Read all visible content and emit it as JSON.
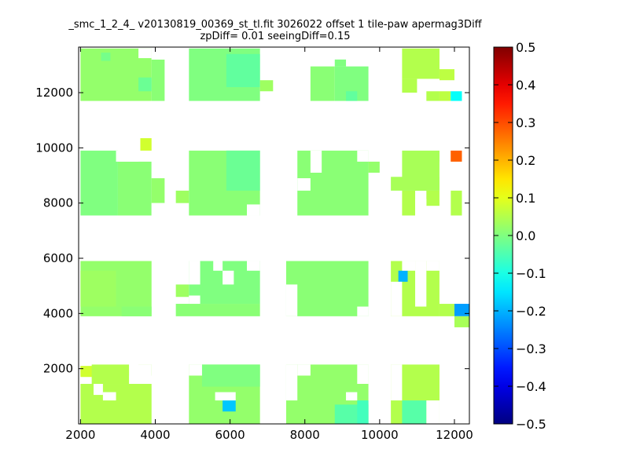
{
  "chart_data": {
    "type": "heatmap",
    "title_line1": "_smc_1_2_4_ v20130819_00369_st_tl.fit 3026022 offset 1 tile-paw apermag3Diff",
    "title_line2": "zpDiff= 0.01 seeingDiff=0.15",
    "xlim": [
      1950,
      12400
    ],
    "ylim": [
      0,
      13650
    ],
    "x_ticks": [
      2000,
      4000,
      6000,
      8000,
      10000,
      12000
    ],
    "y_ticks": [
      2000,
      4000,
      6000,
      8000,
      10000,
      12000
    ],
    "colorbar": {
      "colormap": "jet",
      "range": [
        -0.5,
        0.5
      ],
      "ticks": [
        "0.5",
        "0.4",
        "0.3",
        "0.2",
        "0.1",
        "0.0",
        "−0.1",
        "−0.2",
        "−0.3",
        "−0.4",
        "−0.5"
      ]
    },
    "cell_size": [
      320,
      440
    ],
    "cells": [
      {
        "x0": 2000,
        "x1": 3900,
        "y0": 11700,
        "y1": 13600,
        "value": 0.02
      },
      {
        "x0": 3900,
        "x1": 4250,
        "y0": 11700,
        "y1": 13200,
        "value": 0.01
      },
      {
        "x0": 2550,
        "x1": 2800,
        "y0": 13150,
        "y1": 13450,
        "value": -0.01
      },
      {
        "x0": 3550,
        "x1": 3900,
        "y0": 12050,
        "y1": 12550,
        "value": -0.02
      },
      {
        "x0": 4900,
        "x1": 6800,
        "y0": 11700,
        "y1": 13600,
        "value": 0.0
      },
      {
        "x0": 5900,
        "x1": 6800,
        "y0": 12200,
        "y1": 13400,
        "value": -0.03
      },
      {
        "x0": 6800,
        "x1": 7150,
        "y0": 12050,
        "y1": 12450,
        "value": 0.03
      },
      {
        "x0": 8150,
        "x1": 8800,
        "y0": 11700,
        "y1": 12950,
        "value": 0.01
      },
      {
        "x0": 8800,
        "x1": 9700,
        "y0": 11700,
        "y1": 12950,
        "value": 0.0
      },
      {
        "x0": 9100,
        "x1": 9400,
        "y0": 11700,
        "y1": 12050,
        "value": -0.03
      },
      {
        "x0": 8800,
        "x1": 9100,
        "y0": 12950,
        "y1": 13200,
        "value": 0.0
      },
      {
        "x0": 10600,
        "x1": 11600,
        "y0": 12500,
        "y1": 13600,
        "value": 0.05
      },
      {
        "x0": 10600,
        "x1": 11000,
        "y0": 12000,
        "y1": 12500,
        "value": 0.05
      },
      {
        "x0": 11600,
        "x1": 12000,
        "y0": 12450,
        "y1": 12850,
        "value": 0.06
      },
      {
        "x0": 11250,
        "x1": 11600,
        "y0": 11700,
        "y1": 12050,
        "value": 0.05
      },
      {
        "x0": 11600,
        "x1": 11900,
        "y0": 11700,
        "y1": 12050,
        "value": 0.06
      },
      {
        "x0": 11900,
        "x1": 12200,
        "y0": 11700,
        "y1": 12050,
        "value": -0.12
      },
      {
        "x0": 3600,
        "x1": 3900,
        "y0": 9900,
        "y1": 10350,
        "value": 0.08
      },
      {
        "x0": 2000,
        "x1": 3000,
        "y0": 7550,
        "y1": 9900,
        "value": 0.0
      },
      {
        "x0": 3000,
        "x1": 3900,
        "y0": 7550,
        "y1": 9500,
        "value": 0.01
      },
      {
        "x0": 3900,
        "x1": 4250,
        "y0": 8000,
        "y1": 8900,
        "value": 0.02
      },
      {
        "x0": 4550,
        "x1": 4900,
        "y0": 8000,
        "y1": 8450,
        "value": 0.03
      },
      {
        "x0": 4900,
        "x1": 6800,
        "y0": 7550,
        "y1": 9900,
        "value": 0.01
      },
      {
        "x0": 5900,
        "x1": 6800,
        "y0": 8450,
        "y1": 9900,
        "value": -0.02
      },
      {
        "x0": 7800,
        "x1": 9700,
        "y0": 7550,
        "y1": 9900,
        "value": 0.01
      },
      {
        "x0": 9700,
        "x1": 10000,
        "y0": 9100,
        "y1": 9500,
        "value": 0.02
      },
      {
        "x0": 10600,
        "x1": 11600,
        "y0": 8450,
        "y1": 9900,
        "value": 0.04
      },
      {
        "x0": 10300,
        "x1": 11600,
        "y0": 8450,
        "y1": 8950,
        "value": 0.04
      },
      {
        "x0": 10600,
        "x1": 10950,
        "y0": 7550,
        "y1": 8450,
        "value": 0.05
      },
      {
        "x0": 11250,
        "x1": 11600,
        "y0": 7900,
        "y1": 8450,
        "value": 0.05
      },
      {
        "x0": 11900,
        "x1": 12200,
        "y0": 7550,
        "y1": 8450,
        "value": 0.05
      },
      {
        "x0": 11900,
        "x1": 12200,
        "y0": 9500,
        "y1": 9900,
        "value": 0.28
      },
      {
        "x0": 2000,
        "x1": 3900,
        "y0": 3900,
        "y1": 5900,
        "value": 0.02
      },
      {
        "x0": 2000,
        "x1": 2950,
        "y0": 4250,
        "y1": 5550,
        "value": 0.03
      },
      {
        "x0": 3100,
        "x1": 3900,
        "y0": 3900,
        "y1": 4250,
        "value": 0.01
      },
      {
        "x0": 4550,
        "x1": 4900,
        "y0": 4600,
        "y1": 5050,
        "value": 0.03
      },
      {
        "x0": 4550,
        "x1": 6800,
        "y0": 3900,
        "y1": 4350,
        "value": 0.01
      },
      {
        "x0": 4900,
        "x1": 6800,
        "y0": 4350,
        "y1": 5900,
        "value": 0.0
      },
      {
        "x0": 7500,
        "x1": 9700,
        "y0": 3900,
        "y1": 5900,
        "value": 0.01
      },
      {
        "x0": 10300,
        "x1": 11600,
        "y0": 3900,
        "y1": 5900,
        "value": 0.05
      },
      {
        "x0": 10500,
        "x1": 10750,
        "y0": 5150,
        "y1": 5550,
        "value": -0.2
      },
      {
        "x0": 11600,
        "x1": 12000,
        "y0": 3900,
        "y1": 4350,
        "value": 0.05
      },
      {
        "x0": 12000,
        "x1": 12400,
        "y0": 3900,
        "y1": 4350,
        "value": -0.22
      },
      {
        "x0": 12000,
        "x1": 12400,
        "y0": 3500,
        "y1": 3900,
        "value": 0.04
      },
      {
        "x0": 2000,
        "x1": 3300,
        "y0": 1750,
        "y1": 1950,
        "value": 0.04
      },
      {
        "x0": 2000,
        "x1": 2350,
        "y0": 1700,
        "y1": 2100,
        "value": 0.08
      },
      {
        "x0": 2000,
        "x1": 3900,
        "y0": 0,
        "y1": 1450,
        "value": 0.05
      },
      {
        "x0": 2300,
        "x1": 3300,
        "y0": 1450,
        "y1": 2150,
        "value": 0.05
      },
      {
        "x0": 3550,
        "x1": 3900,
        "y0": 1750,
        "y1": 2150,
        "value": 0.04
      },
      {
        "x0": 4900,
        "x1": 6800,
        "y0": 0,
        "y1": 2150,
        "value": 0.02
      },
      {
        "x0": 5250,
        "x1": 6800,
        "y0": 1350,
        "y1": 2150,
        "value": 0.0
      },
      {
        "x0": 5800,
        "x1": 6150,
        "y0": 450,
        "y1": 850,
        "value": -0.18
      },
      {
        "x0": 7500,
        "x1": 9700,
        "y0": 0,
        "y1": 2150,
        "value": 0.02
      },
      {
        "x0": 8800,
        "x1": 9700,
        "y0": 0,
        "y1": 700,
        "value": -0.04
      },
      {
        "x0": 9400,
        "x1": 9700,
        "y0": 0,
        "y1": 850,
        "value": -0.06
      },
      {
        "x0": 10300,
        "x1": 11600,
        "y0": 0,
        "y1": 2150,
        "value": 0.05
      },
      {
        "x0": 10600,
        "x1": 11250,
        "y0": 0,
        "y1": 850,
        "value": -0.04
      }
    ],
    "holes": [
      {
        "x0": 3900,
        "x1": 4250,
        "y0": 13200,
        "y1": 13600
      },
      {
        "x0": 6800,
        "x1": 6800,
        "y0": 13600,
        "y1": 13600
      },
      {
        "x0": 2950,
        "x1": 3550,
        "y0": 9500,
        "y1": 9900
      },
      {
        "x0": 3900,
        "x1": 4250,
        "y0": 8900,
        "y1": 9900
      },
      {
        "x0": 3900,
        "x1": 4250,
        "y0": 7550,
        "y1": 8000
      },
      {
        "x0": 6450,
        "x1": 6800,
        "y0": 7550,
        "y1": 7950
      },
      {
        "x0": 8150,
        "x1": 8450,
        "y0": 9100,
        "y1": 9900
      },
      {
        "x0": 9400,
        "x1": 9700,
        "y0": 9500,
        "y1": 9900
      },
      {
        "x0": 7800,
        "x1": 8150,
        "y0": 8450,
        "y1": 8900
      },
      {
        "x0": 10950,
        "x1": 11250,
        "y0": 7550,
        "y1": 8150
      },
      {
        "x0": 11600,
        "x1": 11900,
        "y0": 7550,
        "y1": 9500
      },
      {
        "x0": 4900,
        "x1": 5200,
        "y0": 5050,
        "y1": 5900
      },
      {
        "x0": 5550,
        "x1": 5800,
        "y0": 5550,
        "y1": 5900
      },
      {
        "x0": 5800,
        "x1": 6100,
        "y0": 5050,
        "y1": 5550
      },
      {
        "x0": 6450,
        "x1": 6800,
        "y0": 5550,
        "y1": 5900
      },
      {
        "x0": 4900,
        "x1": 5200,
        "y0": 4350,
        "y1": 4650
      },
      {
        "x0": 9400,
        "x1": 9700,
        "y0": 3900,
        "y1": 4250
      },
      {
        "x0": 7500,
        "x1": 7800,
        "y0": 3900,
        "y1": 5050
      },
      {
        "x0": 10300,
        "x1": 10600,
        "y0": 3900,
        "y1": 5150
      },
      {
        "x0": 10600,
        "x1": 10950,
        "y0": 5550,
        "y1": 5900
      },
      {
        "x0": 10950,
        "x1": 11250,
        "y0": 4250,
        "y1": 5900
      },
      {
        "x0": 11600,
        "x1": 12000,
        "y0": 4350,
        "y1": 5900
      },
      {
        "x0": 11250,
        "x1": 11600,
        "y0": 5550,
        "y1": 5900
      },
      {
        "x0": 2350,
        "x1": 2600,
        "y0": 1050,
        "y1": 1450
      },
      {
        "x0": 2600,
        "x1": 2950,
        "y0": 850,
        "y1": 1150
      },
      {
        "x0": 3300,
        "x1": 3900,
        "y0": 1450,
        "y1": 2150
      },
      {
        "x0": 4900,
        "x1": 5250,
        "y0": 1750,
        "y1": 2150
      },
      {
        "x0": 5600,
        "x1": 6150,
        "y0": 850,
        "y1": 1150
      },
      {
        "x0": 7500,
        "x1": 7800,
        "y0": 850,
        "y1": 2150
      },
      {
        "x0": 7800,
        "x1": 8150,
        "y0": 1750,
        "y1": 2150
      },
      {
        "x0": 9100,
        "x1": 9400,
        "y0": 850,
        "y1": 1150
      },
      {
        "x0": 9400,
        "x1": 9700,
        "y0": 1450,
        "y1": 2150
      },
      {
        "x0": 10300,
        "x1": 10600,
        "y0": 850,
        "y1": 2150
      },
      {
        "x0": 11250,
        "x1": 11600,
        "y0": 0,
        "y1": 850
      },
      {
        "x0": 3550,
        "x1": 3900,
        "y0": 13250,
        "y1": 13600
      }
    ]
  }
}
